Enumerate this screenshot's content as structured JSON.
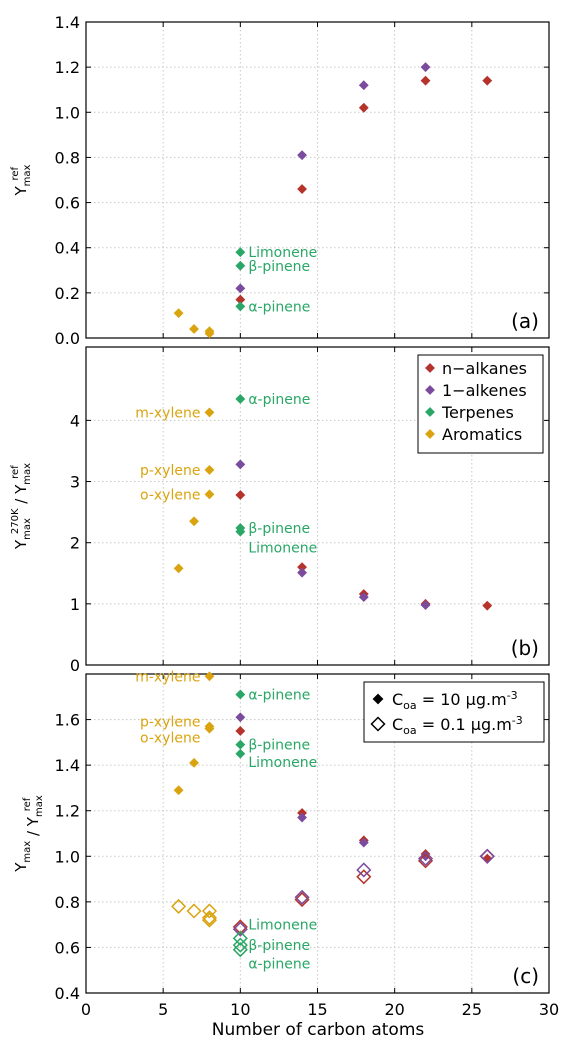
{
  "colors": {
    "n_alkanes": "#b5332a",
    "alkenes": "#7b4c9e",
    "terpenes": "#2aa766",
    "aromatics": "#d9a40f",
    "grid": "#c8c8c8",
    "axis": "#000000"
  },
  "x_axis": {
    "label": "Number of carbon atoms",
    "ticks": [
      "0",
      "5",
      "10",
      "15",
      "20",
      "25",
      "30"
    ],
    "xlim": [
      0,
      30
    ]
  },
  "chart_data": [
    {
      "type": "scatter",
      "panel_tag": "(a)",
      "ylabel": {
        "main": "Y",
        "sub": "max",
        "sup": "ref"
      },
      "ylim": [
        0,
        1.4
      ],
      "yticks": [
        "0.0",
        "0.2",
        "0.4",
        "0.6",
        "0.8",
        "1.0",
        "1.2",
        "1.4"
      ],
      "grid": true,
      "series": [
        {
          "name": "n-alkanes",
          "color_key": "n_alkanes",
          "marker": "filled-diamond",
          "points": [
            [
              10,
              0.17
            ],
            [
              14,
              0.66
            ],
            [
              18,
              1.02
            ],
            [
              22,
              1.14
            ],
            [
              26,
              1.14
            ]
          ]
        },
        {
          "name": "1-alkenes",
          "color_key": "alkenes",
          "marker": "filled-diamond",
          "points": [
            [
              10,
              0.22
            ],
            [
              14,
              0.81
            ],
            [
              18,
              1.12
            ],
            [
              22,
              1.2
            ]
          ]
        },
        {
          "name": "Terpenes",
          "color_key": "terpenes",
          "marker": "filled-diamond",
          "points": [
            [
              10,
              0.38
            ],
            [
              10,
              0.32
            ],
            [
              10,
              0.14
            ]
          ]
        },
        {
          "name": "Aromatics",
          "color_key": "aromatics",
          "marker": "filled-diamond",
          "points": [
            [
              6,
              0.11
            ],
            [
              7,
              0.04
            ],
            [
              8,
              0.03
            ],
            [
              8,
              0.02
            ]
          ]
        }
      ],
      "annotations": [
        {
          "text": "Limonene",
          "x": 10,
          "y": 0.38,
          "side": "right",
          "color_key": "terpenes"
        },
        {
          "text": "β-pinene",
          "x": 10,
          "y": 0.32,
          "side": "right",
          "color_key": "terpenes"
        },
        {
          "text": "α-pinene",
          "x": 10,
          "y": 0.14,
          "side": "right",
          "color_key": "terpenes"
        }
      ],
      "legend": null
    },
    {
      "type": "scatter",
      "panel_tag": "(b)",
      "ylabel": {
        "main": "Y",
        "sub": "max",
        "sup": "270K",
        "slash": "/ Y",
        "sub2": "max",
        "sup2": "ref"
      },
      "ylim": [
        0,
        5.2
      ],
      "yticks": [
        "0",
        "1",
        "2",
        "3",
        "4"
      ],
      "ytick_values": [
        0,
        1,
        2,
        3,
        4
      ],
      "grid": true,
      "series": [
        {
          "name": "n-alkanes",
          "color_key": "n_alkanes",
          "marker": "filled-diamond",
          "points": [
            [
              10,
              2.78
            ],
            [
              14,
              1.6
            ],
            [
              18,
              1.16
            ],
            [
              22,
              1.0
            ],
            [
              26,
              0.97
            ]
          ]
        },
        {
          "name": "1-alkenes",
          "color_key": "alkenes",
          "marker": "filled-diamond",
          "points": [
            [
              10,
              3.28
            ],
            [
              14,
              1.51
            ],
            [
              18,
              1.11
            ],
            [
              22,
              0.98
            ]
          ]
        },
        {
          "name": "Terpenes",
          "color_key": "terpenes",
          "marker": "filled-diamond",
          "points": [
            [
              10,
              4.35
            ],
            [
              10,
              2.24
            ],
            [
              10,
              2.18
            ]
          ]
        },
        {
          "name": "Aromatics",
          "color_key": "aromatics",
          "marker": "filled-diamond",
          "points": [
            [
              6,
              1.58
            ],
            [
              7,
              2.35
            ],
            [
              8,
              2.79
            ],
            [
              8,
              3.19
            ],
            [
              8,
              4.13
            ]
          ]
        }
      ],
      "annotations": [
        {
          "text": "α-pinene",
          "x": 10,
          "y": 4.35,
          "side": "right",
          "color_key": "terpenes"
        },
        {
          "text": "β-pinene",
          "x": 10,
          "y": 2.24,
          "side": "right",
          "color_key": "terpenes",
          "dy": 0
        },
        {
          "text": "Limonene",
          "x": 10,
          "y": 2.18,
          "side": "right",
          "color_key": "terpenes",
          "dy": 16
        },
        {
          "text": "m-xylene",
          "x": 8,
          "y": 4.13,
          "side": "left",
          "color_key": "aromatics"
        },
        {
          "text": "p-xylene",
          "x": 8,
          "y": 3.19,
          "side": "left",
          "color_key": "aromatics"
        },
        {
          "text": "o-xylene",
          "x": 8,
          "y": 2.79,
          "side": "left",
          "color_key": "aromatics"
        }
      ],
      "legend": {
        "position": "top-right",
        "entries": [
          {
            "text": "n−alkanes",
            "color_key": "n_alkanes",
            "marker": "filled-diamond"
          },
          {
            "text": "1−alkenes",
            "color_key": "alkenes",
            "marker": "filled-diamond"
          },
          {
            "text": "Terpenes",
            "color_key": "terpenes",
            "marker": "filled-diamond"
          },
          {
            "text": "Aromatics",
            "color_key": "aromatics",
            "marker": "filled-diamond"
          }
        ]
      }
    },
    {
      "type": "scatter",
      "panel_tag": "(c)",
      "ylabel": {
        "main": "Y",
        "sub": "max",
        "slash": "/ Y",
        "sub2": "max",
        "sup2": "ref"
      },
      "ylim": [
        0.4,
        1.8
      ],
      "yticks": [
        "0.4",
        "0.6",
        "0.8",
        "1.0",
        "1.2",
        "1.4",
        "1.6"
      ],
      "ytick_values": [
        0.4,
        0.6,
        0.8,
        1.0,
        1.2,
        1.4,
        1.6
      ],
      "grid": true,
      "series": [
        {
          "name": "n-alkanes",
          "color_key": "n_alkanes",
          "marker": "filled-diamond",
          "points": [
            [
              10,
              1.55
            ],
            [
              14,
              1.19
            ],
            [
              18,
              1.07
            ],
            [
              22,
              1.01
            ],
            [
              26,
              0.99
            ]
          ]
        },
        {
          "name": "1-alkenes",
          "color_key": "alkenes",
          "marker": "filled-diamond",
          "points": [
            [
              10,
              1.61
            ],
            [
              14,
              1.17
            ],
            [
              18,
              1.06
            ],
            [
              22,
              1.0
            ]
          ]
        },
        {
          "name": "Terpenes",
          "color_key": "terpenes",
          "marker": "filled-diamond",
          "points": [
            [
              10,
              1.71
            ],
            [
              10,
              1.49
            ],
            [
              10,
              1.45
            ]
          ]
        },
        {
          "name": "Aromatics",
          "color_key": "aromatics",
          "marker": "filled-diamond",
          "points": [
            [
              6,
              1.29
            ],
            [
              7,
              1.41
            ],
            [
              8,
              1.56
            ],
            [
              8,
              1.57
            ],
            [
              8,
              1.79
            ]
          ]
        },
        {
          "name": "n-alkanes",
          "color_key": "n_alkanes",
          "marker": "open-diamond",
          "points": [
            [
              10,
              0.69
            ],
            [
              14,
              0.81
            ],
            [
              18,
              0.91
            ],
            [
              22,
              0.98
            ],
            [
              26,
              1.0
            ]
          ]
        },
        {
          "name": "1-alkenes",
          "color_key": "alkenes",
          "marker": "open-diamond",
          "points": [
            [
              10,
              0.68
            ],
            [
              14,
              0.82
            ],
            [
              18,
              0.94
            ],
            [
              22,
              0.99
            ],
            [
              26,
              1.0
            ]
          ]
        },
        {
          "name": "Terpenes",
          "color_key": "terpenes",
          "marker": "open-diamond",
          "points": [
            [
              10,
              0.64
            ],
            [
              10,
              0.61
            ],
            [
              10,
              0.59
            ]
          ]
        },
        {
          "name": "Aromatics",
          "color_key": "aromatics",
          "marker": "open-diamond",
          "points": [
            [
              6,
              0.78
            ],
            [
              7,
              0.76
            ],
            [
              8,
              0.76
            ],
            [
              8,
              0.73
            ],
            [
              8,
              0.72
            ]
          ]
        }
      ],
      "annotations": [
        {
          "text": "α-pinene",
          "x": 10,
          "y": 1.71,
          "side": "right",
          "color_key": "terpenes"
        },
        {
          "text": "β-pinene",
          "x": 10,
          "y": 1.49,
          "side": "right",
          "color_key": "terpenes"
        },
        {
          "text": "Limonene",
          "x": 10,
          "y": 1.45,
          "side": "right",
          "color_key": "terpenes",
          "dy": 8
        },
        {
          "text": "m-xylene",
          "x": 8,
          "y": 1.79,
          "side": "left",
          "color_key": "aromatics"
        },
        {
          "text": "p-xylene",
          "x": 8,
          "y": 1.57,
          "side": "left",
          "color_key": "aromatics",
          "dy": -5
        },
        {
          "text": "o-xylene",
          "x": 8,
          "y": 1.56,
          "side": "left",
          "color_key": "aromatics",
          "dy": 9
        },
        {
          "text": "Limonene",
          "x": 10,
          "y": 0.64,
          "side": "right",
          "color_key": "terpenes",
          "dy": -14
        },
        {
          "text": "β-pinene",
          "x": 10,
          "y": 0.61,
          "side": "right",
          "color_key": "terpenes"
        },
        {
          "text": "α-pinene",
          "x": 10,
          "y": 0.59,
          "side": "right",
          "color_key": "terpenes",
          "dy": 14
        }
      ],
      "legend": {
        "position": "top-right",
        "entries": [
          {
            "text_main": "C",
            "text_sub": "oa",
            "text_rest": " = 10 μg.m",
            "text_sup": "-3",
            "marker": "filled-diamond",
            "color_key": "axis"
          },
          {
            "text_main": "C",
            "text_sub": "oa",
            "text_rest": " = 0.1 μg.m",
            "text_sup": "-3",
            "marker": "open-diamond",
            "color_key": "axis"
          }
        ]
      }
    }
  ]
}
